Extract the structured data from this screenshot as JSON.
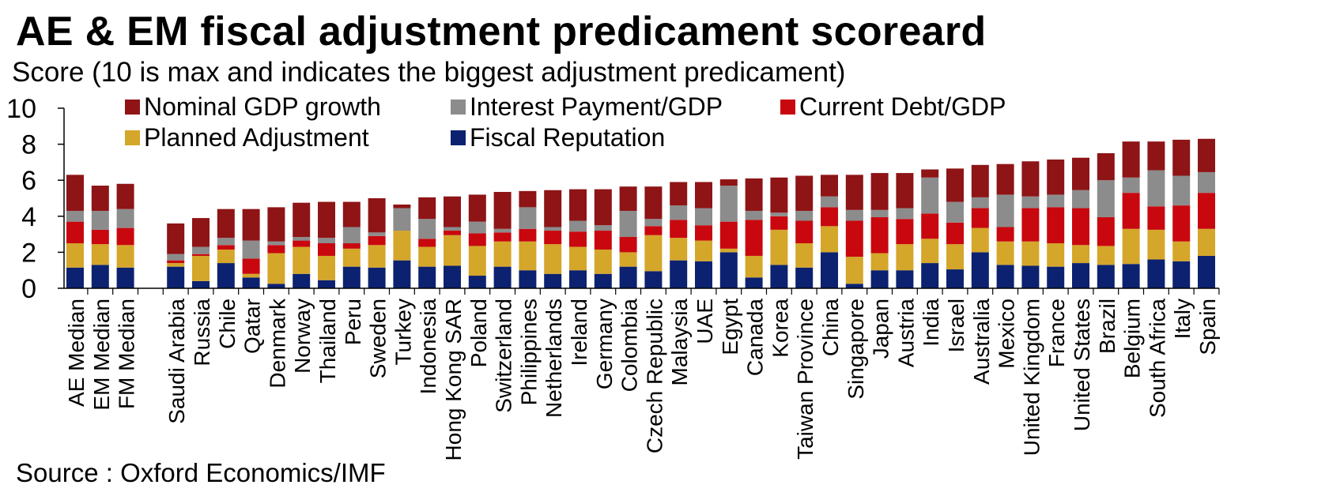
{
  "title": "AE & EM fiscal adjustment predicament scoreard",
  "subtitle": "Score (10 is max and indicates the biggest adjustment predicament)",
  "source": "Source : Oxford Economics/IMF",
  "colors": {
    "Fiscal Reputation": "#0c2270",
    "Planned Adjustment": "#d4a62a",
    "Current Debt/GDP": "#c8080e",
    "Interest Payment/GDP": "#8c8c8c",
    "Nominal GDP growth": "#8e1416"
  },
  "chart_data": {
    "type": "bar",
    "stacked": true,
    "ylim": [
      0,
      10
    ],
    "yticks": [
      0,
      2,
      4,
      6,
      8,
      10
    ],
    "legend_position": "top-left",
    "legend_order": [
      "Nominal GDP growth",
      "Interest Payment/GDP",
      "Current Debt/GDP",
      "Planned Adjustment",
      "Fiscal Reputation"
    ],
    "categories": [
      "AE Median",
      "EM Median",
      "FM Median",
      "",
      "Saudi Arabia",
      "Russia",
      "Chile",
      "Qatar",
      "Denmark",
      "Norway",
      "Thailand",
      "Peru",
      "Sweden",
      "Turkey",
      "Indonesia",
      "Hong Kong SAR",
      "Poland",
      "Switzerland",
      "Philippines",
      "Netherlands",
      "Ireland",
      "Germany",
      "Colombia",
      "Czech Republic",
      "Malaysia",
      "UAE",
      "Egypt",
      "Canada",
      "Korea",
      "Taiwan Province",
      "China",
      "Singapore",
      "Japan",
      "Austria",
      "India",
      "Israel",
      "Australia",
      "Mexico",
      "United Kingdom",
      "France",
      "United States",
      "Brazil",
      "Belgium",
      "South Africa",
      "Italy",
      "Spain"
    ],
    "series": [
      {
        "name": "Fiscal Reputation",
        "values": [
          1.15,
          1.3,
          1.15,
          null,
          1.2,
          0.4,
          1.4,
          0.6,
          0.25,
          0.8,
          0.45,
          1.2,
          1.15,
          1.55,
          1.2,
          1.25,
          0.7,
          1.2,
          1.0,
          0.8,
          1.0,
          0.8,
          1.2,
          0.95,
          1.55,
          1.5,
          2.0,
          0.6,
          1.3,
          1.15,
          2.0,
          0.25,
          1.0,
          1.0,
          1.4,
          1.05,
          2.0,
          1.3,
          1.25,
          1.2,
          1.4,
          1.3,
          1.35,
          1.6,
          1.5,
          1.8
        ]
      },
      {
        "name": "Planned Adjustment",
        "values": [
          1.35,
          1.15,
          1.25,
          null,
          0.2,
          1.4,
          0.75,
          0.2,
          1.7,
          1.5,
          1.35,
          1.0,
          1.25,
          1.65,
          1.1,
          1.7,
          1.65,
          1.4,
          1.6,
          1.65,
          1.3,
          1.35,
          0.8,
          2.0,
          1.25,
          1.15,
          0.2,
          1.2,
          1.95,
          1.35,
          1.45,
          1.5,
          0.95,
          1.45,
          1.35,
          1.4,
          1.35,
          1.3,
          1.35,
          1.3,
          1.0,
          1.05,
          1.95,
          1.65,
          1.1,
          1.5
        ]
      },
      {
        "name": "Current Debt/GDP",
        "values": [
          1.2,
          0.8,
          0.95,
          null,
          0.15,
          0.1,
          0.25,
          0.85,
          0.45,
          0.35,
          0.7,
          0.3,
          0.5,
          0.0,
          0.45,
          0.25,
          0.7,
          0.5,
          0.7,
          0.75,
          0.85,
          1.05,
          0.85,
          0.5,
          1.0,
          0.85,
          1.5,
          2.0,
          0.75,
          1.25,
          1.05,
          2.0,
          2.0,
          1.4,
          1.4,
          1.2,
          1.1,
          0.8,
          1.85,
          2.0,
          2.05,
          1.6,
          2.0,
          1.3,
          2.0,
          2.0
        ]
      },
      {
        "name": "Interest Payment/GDP",
        "values": [
          0.6,
          1.05,
          1.05,
          null,
          0.35,
          0.4,
          0.4,
          1.0,
          0.2,
          0.2,
          0.3,
          0.9,
          0.2,
          1.25,
          1.1,
          0.2,
          0.65,
          0.2,
          1.2,
          0.2,
          0.6,
          0.3,
          1.45,
          0.4,
          0.8,
          0.95,
          2.0,
          0.5,
          0.2,
          0.55,
          0.6,
          0.6,
          0.4,
          0.6,
          2.0,
          1.15,
          0.6,
          1.8,
          0.65,
          0.7,
          1.0,
          2.05,
          0.85,
          2.0,
          1.65,
          1.15
        ]
      },
      {
        "name": "Nominal GDP growth",
        "values": [
          2.0,
          1.4,
          1.4,
          null,
          1.7,
          1.6,
          1.6,
          1.75,
          1.9,
          1.9,
          2.0,
          1.4,
          1.9,
          0.2,
          1.2,
          1.7,
          1.5,
          2.05,
          0.9,
          2.05,
          1.75,
          2.0,
          1.35,
          1.8,
          1.3,
          1.45,
          0.35,
          1.8,
          1.95,
          1.95,
          1.2,
          1.95,
          2.05,
          1.95,
          0.45,
          1.85,
          1.8,
          1.7,
          1.95,
          1.95,
          1.8,
          1.5,
          2.0,
          1.6,
          2.0,
          1.85
        ]
      }
    ]
  }
}
